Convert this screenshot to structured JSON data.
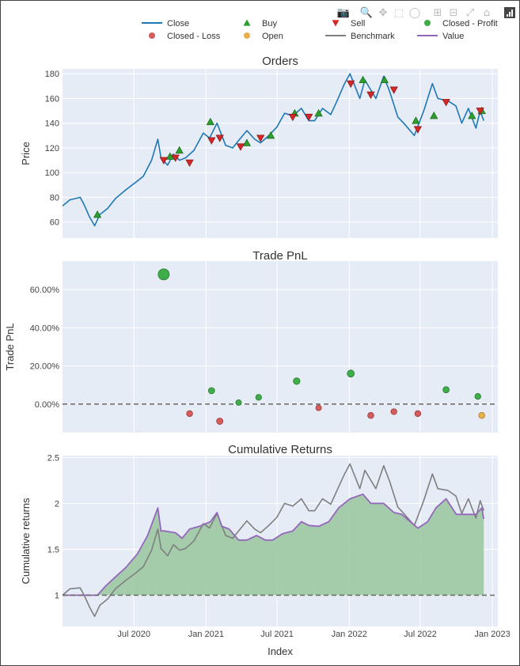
{
  "toolbar": {
    "icons": [
      "camera-icon",
      "zoom-icon",
      "pan-icon",
      "box-select-icon",
      "lasso-icon",
      "zoom-in-icon",
      "zoom-out-icon",
      "autoscale-icon",
      "reset-axes-icon",
      "plotly-logo-icon"
    ]
  },
  "colors": {
    "close": "#1f77b4",
    "buy": "#2ca02c",
    "sell": "#d62728",
    "closed_profit": "#3fae49",
    "closed_loss": "#d65c5c",
    "open": "#e8b04b",
    "benchmark": "#7f7f7f",
    "value": "#9467bd",
    "fill": "#9cc9a3",
    "plot_bg": "#e5ecf6",
    "grid": "#ffffff"
  },
  "legend": [
    {
      "key": "close",
      "label": "Close",
      "kind": "line"
    },
    {
      "key": "buy",
      "label": "Buy",
      "kind": "triangle-up"
    },
    {
      "key": "sell",
      "label": "Sell",
      "kind": "triangle-down"
    },
    {
      "key": "closed_profit",
      "label": "Closed - Profit",
      "kind": "circle"
    },
    {
      "key": "closed_loss",
      "label": "Closed - Loss",
      "kind": "circle"
    },
    {
      "key": "open",
      "label": "Open",
      "kind": "circle"
    },
    {
      "key": "benchmark",
      "label": "Benchmark",
      "kind": "line"
    },
    {
      "key": "value",
      "label": "Value",
      "kind": "line"
    }
  ],
  "x_axis": {
    "label": "Index",
    "range": [
      "2020-01-01",
      "2023-01-15"
    ],
    "ticks": [
      {
        "date": "2020-07-01",
        "label": "Jul 2020"
      },
      {
        "date": "2021-01-01",
        "label": "Jan 2021"
      },
      {
        "date": "2021-07-01",
        "label": "Jul 2021"
      },
      {
        "date": "2022-01-01",
        "label": "Jan 2022"
      },
      {
        "date": "2022-07-01",
        "label": "Jul 2022"
      },
      {
        "date": "2023-01-01",
        "label": "Jan 2023"
      }
    ]
  },
  "chart_data": [
    {
      "type": "line",
      "title": "Orders",
      "ylabel": "Price",
      "ylim": [
        47,
        184
      ],
      "yticks": [
        60,
        80,
        100,
        120,
        140,
        160,
        180
      ],
      "close_series": {
        "name": "Close",
        "x": [
          "2020-01-01",
          "2020-01-20",
          "2020-02-15",
          "2020-02-25",
          "2020-03-10",
          "2020-03-23",
          "2020-04-05",
          "2020-04-25",
          "2020-05-15",
          "2020-06-10",
          "2020-07-05",
          "2020-07-25",
          "2020-08-15",
          "2020-08-31",
          "2020-09-08",
          "2020-09-25",
          "2020-10-10",
          "2020-10-25",
          "2020-11-10",
          "2020-12-01",
          "2020-12-25",
          "2021-01-10",
          "2021-01-29",
          "2021-02-20",
          "2021-03-10",
          "2021-03-25",
          "2021-04-15",
          "2021-05-05",
          "2021-05-20",
          "2021-06-10",
          "2021-07-01",
          "2021-07-20",
          "2021-08-10",
          "2021-09-01",
          "2021-09-20",
          "2021-10-05",
          "2021-10-25",
          "2021-11-15",
          "2021-12-01",
          "2021-12-20",
          "2022-01-03",
          "2022-01-28",
          "2022-02-10",
          "2022-03-10",
          "2022-03-30",
          "2022-04-15",
          "2022-05-05",
          "2022-05-20",
          "2022-06-16",
          "2022-07-10",
          "2022-08-01",
          "2022-08-15",
          "2022-09-10",
          "2022-09-30",
          "2022-10-15",
          "2022-11-01",
          "2022-11-20",
          "2022-12-01",
          "2022-12-10"
        ],
        "y": [
          73,
          78,
          80,
          74,
          64,
          57,
          66,
          71,
          79,
          86,
          92,
          97,
          110,
          127,
          112,
          106,
          115,
          110,
          112,
          118,
          132,
          128,
          140,
          122,
          120,
          126,
          134,
          127,
          124,
          130,
          137,
          148,
          146,
          152,
          142,
          142,
          152,
          147,
          158,
          172,
          180,
          160,
          175,
          160,
          178,
          165,
          145,
          140,
          130,
          150,
          172,
          160,
          158,
          154,
          140,
          152,
          136,
          150,
          142
        ]
      },
      "buy_markers": {
        "name": "Buy",
        "x": [
          "2020-03-30",
          "2020-10-01",
          "2020-10-25",
          "2021-01-12",
          "2021-04-15",
          "2021-06-15",
          "2021-08-15",
          "2021-10-15",
          "2022-02-05",
          "2022-04-01",
          "2022-06-20",
          "2022-08-05",
          "2022-11-10",
          "2022-12-05"
        ],
        "y": [
          66,
          113,
          118,
          141,
          124,
          130,
          148,
          148,
          175,
          175,
          142,
          146,
          146,
          150
        ]
      },
      "sell_markers": {
        "name": "Sell",
        "x": [
          "2020-09-15",
          "2020-10-15",
          "2020-11-20",
          "2021-01-15",
          "2021-02-05",
          "2021-03-30",
          "2021-05-20",
          "2021-08-10",
          "2021-09-20",
          "2022-01-05",
          "2022-02-25",
          "2022-04-25",
          "2022-06-25",
          "2022-09-05",
          "2022-12-01"
        ],
        "y": [
          110,
          112,
          108,
          126,
          128,
          121,
          128,
          145,
          145,
          172,
          163,
          167,
          135,
          157,
          150
        ]
      }
    },
    {
      "type": "scatter",
      "title": "Trade PnL",
      "ylabel": "Trade PnL",
      "ylim": [
        -15,
        75
      ],
      "yticks": [
        0,
        20,
        40,
        60
      ],
      "ytick_labels": [
        "0.00%",
        "20.00%",
        "40.00%",
        "60.00%"
      ],
      "zero_line": 0,
      "closed_profit": {
        "name": "Closed - Profit",
        "x": [
          "2020-09-15",
          "2021-01-15",
          "2021-03-25",
          "2021-05-15",
          "2021-08-20",
          "2022-01-05",
          "2022-09-05",
          "2022-11-25"
        ],
        "y": [
          68.0,
          7.0,
          0.8,
          3.5,
          12.0,
          16.0,
          7.5,
          4.0
        ]
      },
      "closed_loss": {
        "name": "Closed - Loss",
        "x": [
          "2020-11-20",
          "2021-02-05",
          "2021-10-15",
          "2022-02-25",
          "2022-04-25",
          "2022-06-25"
        ],
        "y": [
          -5.0,
          -9.0,
          -2.0,
          -6.0,
          -4.0,
          -5.0
        ]
      },
      "open": {
        "name": "Open",
        "x": [
          "2022-12-05"
        ],
        "y": [
          -6.0
        ]
      }
    },
    {
      "type": "area",
      "title": "Cumulative Returns",
      "ylabel": "Cumulative returns",
      "ylim": [
        0.66,
        2.52
      ],
      "yticks": [
        1,
        1.5,
        2,
        2.5
      ],
      "ytick_labels": [
        "1",
        "1.5",
        "2",
        "2.5"
      ],
      "baseline": 1,
      "value": {
        "name": "Value",
        "x": [
          "2020-01-01",
          "2020-03-30",
          "2020-04-20",
          "2020-05-15",
          "2020-06-10",
          "2020-07-10",
          "2020-08-05",
          "2020-08-31",
          "2020-09-08",
          "2020-09-15",
          "2020-10-15",
          "2020-11-01",
          "2020-11-20",
          "2020-12-15",
          "2021-01-12",
          "2021-01-29",
          "2021-02-10",
          "2021-03-01",
          "2021-03-25",
          "2021-04-15",
          "2021-05-10",
          "2021-06-01",
          "2021-06-20",
          "2021-07-15",
          "2021-08-10",
          "2021-09-01",
          "2021-09-20",
          "2021-10-15",
          "2021-11-10",
          "2021-12-05",
          "2022-01-03",
          "2022-02-05",
          "2022-02-25",
          "2022-03-30",
          "2022-04-25",
          "2022-05-15",
          "2022-06-25",
          "2022-07-20",
          "2022-08-10",
          "2022-09-05",
          "2022-10-01",
          "2022-11-01",
          "2022-11-20",
          "2022-12-05",
          "2022-12-10"
        ],
        "y": [
          1.0,
          1.0,
          1.1,
          1.2,
          1.3,
          1.45,
          1.65,
          1.95,
          1.7,
          1.7,
          1.68,
          1.62,
          1.72,
          1.75,
          1.8,
          1.9,
          1.75,
          1.72,
          1.6,
          1.6,
          1.65,
          1.6,
          1.6,
          1.67,
          1.7,
          1.8,
          1.76,
          1.75,
          1.8,
          1.95,
          2.05,
          2.1,
          2.0,
          2.0,
          1.9,
          1.88,
          1.73,
          1.8,
          1.95,
          2.05,
          1.88,
          1.88,
          1.88,
          1.95,
          1.83
        ]
      },
      "benchmark": {
        "name": "Benchmark",
        "x": [
          "2020-01-01",
          "2020-01-20",
          "2020-02-15",
          "2020-02-25",
          "2020-03-10",
          "2020-03-23",
          "2020-04-05",
          "2020-04-25",
          "2020-05-15",
          "2020-06-10",
          "2020-07-05",
          "2020-07-25",
          "2020-08-15",
          "2020-08-31",
          "2020-09-08",
          "2020-09-25",
          "2020-10-10",
          "2020-10-25",
          "2020-11-10",
          "2020-12-01",
          "2020-12-25",
          "2021-01-10",
          "2021-01-29",
          "2021-02-20",
          "2021-03-10",
          "2021-03-25",
          "2021-04-15",
          "2021-05-05",
          "2021-05-20",
          "2021-06-10",
          "2021-07-01",
          "2021-07-20",
          "2021-08-10",
          "2021-09-01",
          "2021-09-20",
          "2021-10-05",
          "2021-10-25",
          "2021-11-15",
          "2021-12-01",
          "2021-12-20",
          "2022-01-03",
          "2022-01-28",
          "2022-02-10",
          "2022-03-10",
          "2022-03-30",
          "2022-04-15",
          "2022-05-05",
          "2022-05-20",
          "2022-06-16",
          "2022-07-10",
          "2022-08-01",
          "2022-08-15",
          "2022-09-10",
          "2022-09-30",
          "2022-10-15",
          "2022-11-01",
          "2022-11-20",
          "2022-12-01",
          "2022-12-10"
        ],
        "y": [
          1.0,
          1.07,
          1.08,
          1.0,
          0.87,
          0.77,
          0.89,
          0.96,
          1.07,
          1.16,
          1.24,
          1.31,
          1.49,
          1.72,
          1.51,
          1.43,
          1.55,
          1.49,
          1.51,
          1.59,
          1.78,
          1.73,
          1.89,
          1.65,
          1.62,
          1.7,
          1.81,
          1.72,
          1.68,
          1.76,
          1.85,
          2.0,
          1.97,
          2.05,
          1.92,
          1.92,
          2.05,
          1.99,
          2.14,
          2.32,
          2.43,
          2.16,
          2.36,
          2.16,
          2.41,
          2.23,
          1.96,
          1.89,
          1.76,
          2.03,
          2.32,
          2.16,
          2.14,
          2.08,
          1.89,
          2.05,
          1.84,
          2.03,
          1.92
        ]
      }
    }
  ]
}
